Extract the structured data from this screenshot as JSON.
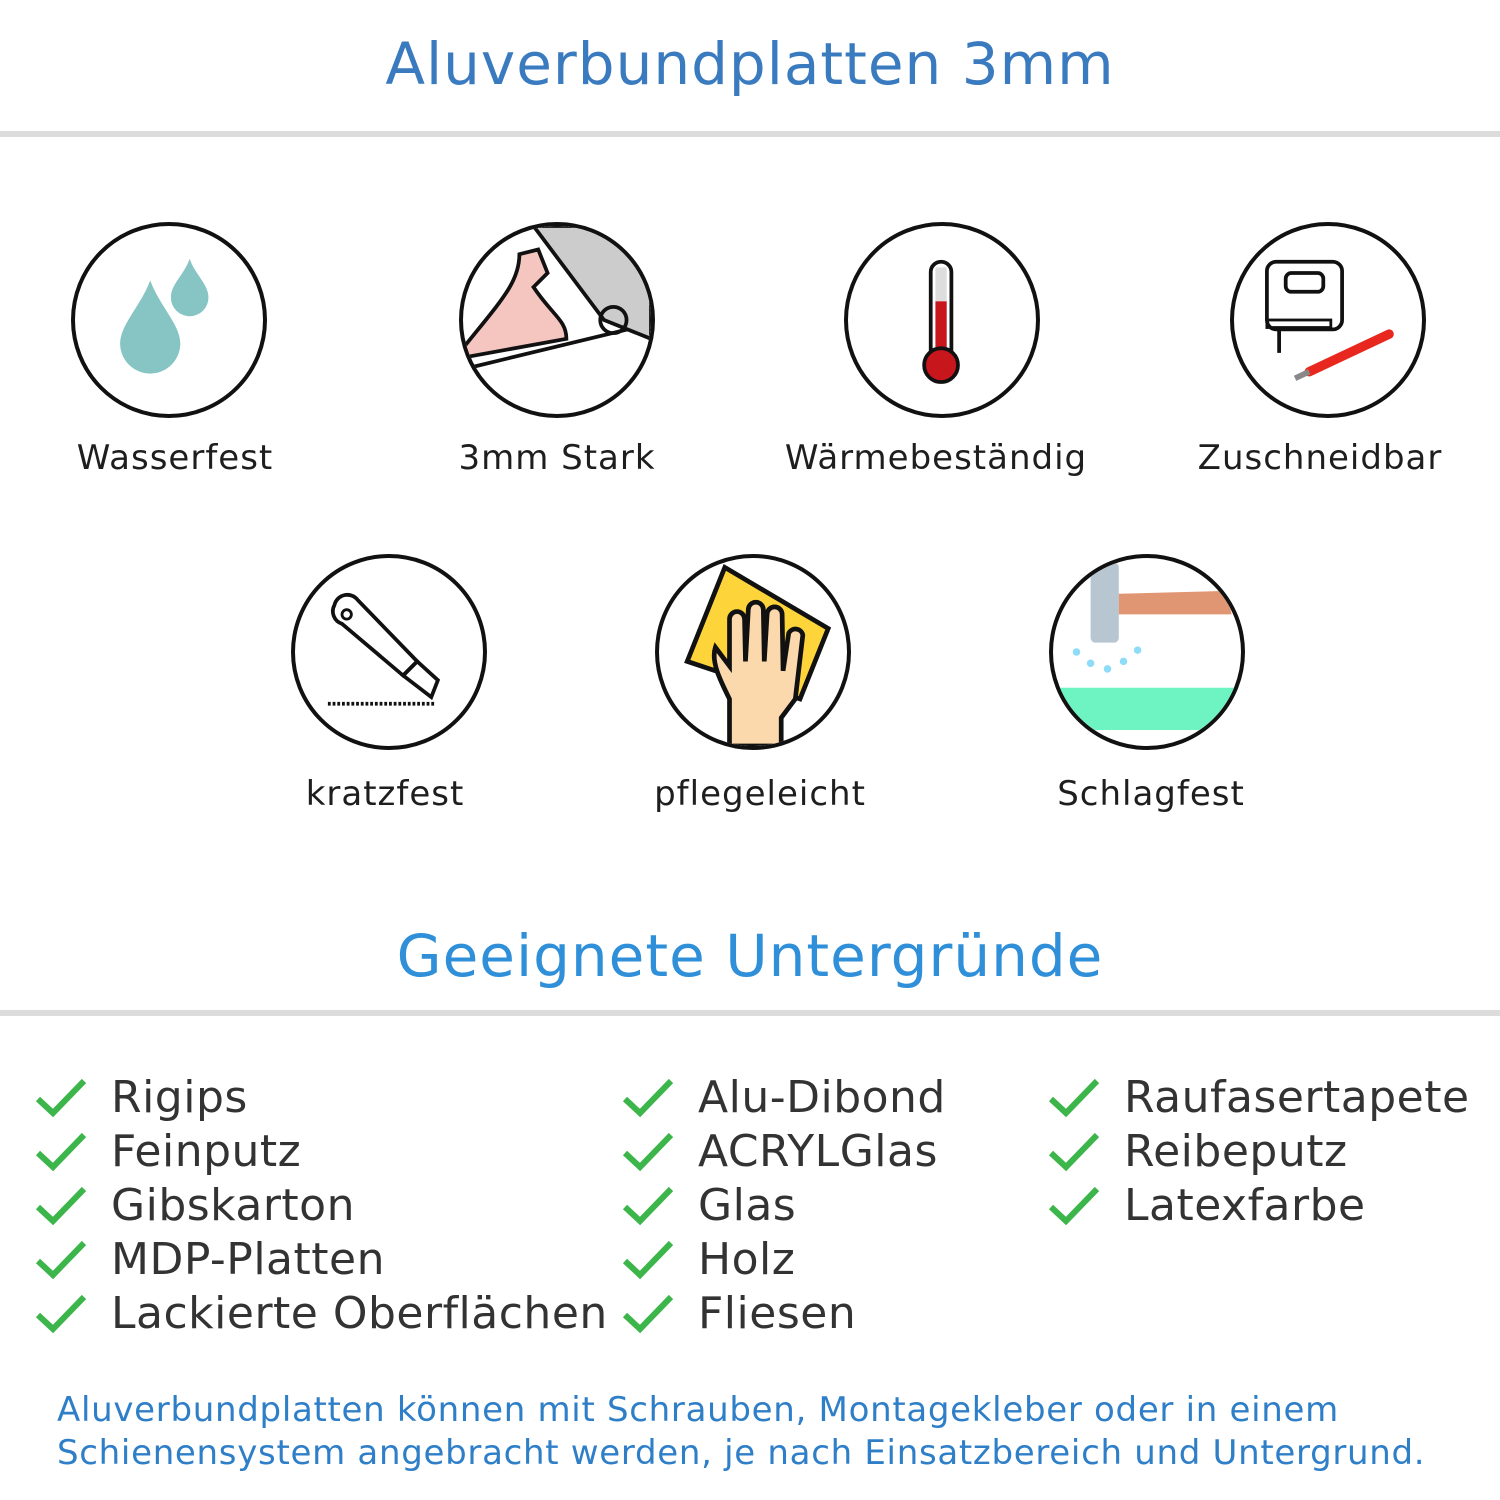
{
  "title": "Aluverbundplatten 3mm",
  "features": [
    {
      "label": "Wasserfest",
      "icon": "water-drops-icon"
    },
    {
      "label": "3mm Stark",
      "icon": "strong-arm-icon"
    },
    {
      "label": "Wärmebeständig",
      "icon": "thermometer-icon"
    },
    {
      "label": "Zuschneidbar",
      "icon": "jigsaw-cutter-icon"
    },
    {
      "label": "kratzfest",
      "icon": "box-cutter-icon"
    },
    {
      "label": "pflegeleicht",
      "icon": "cleaning-hand-icon"
    },
    {
      "label": "Schlagfest",
      "icon": "hammer-icon"
    }
  ],
  "subtitle": "Geeignete Untergründe",
  "surfaces": {
    "col1": [
      "Rigips",
      "Feinputz",
      "Gibskarton",
      "MDP-Platten",
      "Lackierte Oberflächen"
    ],
    "col2": [
      "Alu-Dibond",
      "ACRYLGlas",
      "Glas",
      "Holz",
      "Fliesen"
    ],
    "col3": [
      "Raufasertapete",
      "Reibeputz",
      "Latexfarbe"
    ]
  },
  "footer": {
    "line1": "Aluverbundplatten können mit Schrauben, Montagekleber oder in einem",
    "line2": "Schienensystem angebracht werden, je nach Einsatzbereich und Untergrund."
  },
  "colors": {
    "title": "#3a7bbf",
    "subtitle": "#2f8fd8",
    "check": "#3cb54a",
    "footer": "#2f7fc8"
  }
}
